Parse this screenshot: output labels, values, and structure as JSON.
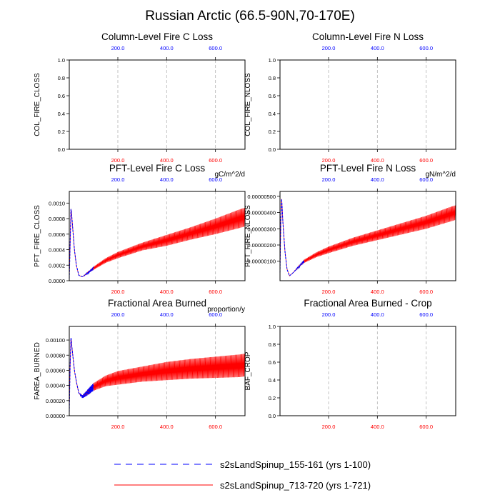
{
  "figure_title": "Russian Arctic (66.5-90N,70-170E)",
  "colors": {
    "blue": "#0000ff",
    "red": "#ff0000",
    "axis": "#000000",
    "grid": "#b4b4b4"
  },
  "legend": [
    {
      "label": "s2sLandSpinup_155-161 (yrs 1-100)",
      "color": "#0000ff",
      "style": "dashed"
    },
    {
      "label": "s2sLandSpinup_713-720 (yrs 1-721)",
      "color": "#ff0000",
      "style": "solid"
    }
  ],
  "chart_data": [
    {
      "type": "line",
      "title": "Column-Level Fire C Loss",
      "ylabel": "COL_FIRE_CLOSS",
      "units": "",
      "xlim": [
        1,
        721
      ],
      "ylim": [
        0,
        1
      ],
      "yticks": [
        "0.0",
        "0.2",
        "0.4",
        "0.6",
        "0.8",
        "1.0"
      ],
      "top_ticks": [
        "200.0",
        "400.0",
        "600.0"
      ],
      "bottom_ticks": [
        "200.0",
        "400.0",
        "600.0"
      ],
      "series": []
    },
    {
      "type": "line",
      "title": "Column-Level Fire N Loss",
      "ylabel": "COL_FIRE_NLOSS",
      "units": "",
      "xlim": [
        1,
        721
      ],
      "ylim": [
        0,
        1
      ],
      "yticks": [
        "0.0",
        "0.2",
        "0.4",
        "0.6",
        "0.8",
        "1.0"
      ],
      "top_ticks": [
        "200.0",
        "400.0",
        "600.0"
      ],
      "bottom_ticks": [
        "200.0",
        "400.0",
        "600.0"
      ],
      "series": []
    },
    {
      "type": "line",
      "title": "PFT-Level Fire C Loss",
      "ylabel": "PFT_FIRE_CLOSS",
      "units": "gC/m^2/d",
      "xlim": [
        1,
        721
      ],
      "ylim": [
        0,
        0.00115
      ],
      "yticks": [
        "0.0000",
        "0.0002",
        "0.0004",
        "0.0006",
        "0.0008",
        "0.0010"
      ],
      "top_ticks": [
        "200.0",
        "400.0",
        "600.0"
      ],
      "bottom_ticks": [
        "200.0",
        "400.0",
        "600.0"
      ],
      "series": [
        {
          "name": "s2sLandSpinup_713-720 (yrs 1-721)",
          "color": "#ff0000",
          "x": [
            1,
            4,
            8,
            12,
            17,
            22,
            30,
            40,
            55,
            80,
            100,
            150,
            200,
            300,
            400,
            500,
            600,
            700,
            721
          ],
          "y": [
            3e-05,
            0.0004,
            0.00095,
            0.0008,
            0.0006,
            0.0004,
            0.0002,
            7e-05,
            5e-05,
            0.00011,
            0.00016,
            0.00026,
            0.00033,
            0.00044,
            0.00052,
            0.00061,
            0.0007,
            0.0008,
            0.00082
          ],
          "spread": [
            0,
            0,
            0,
            0,
            0,
            0,
            0,
            0,
            0,
            1e-05,
            2e-05,
            3e-05,
            4e-05,
            5e-05,
            7e-05,
            8e-05,
            0.0001,
            0.00012,
            0.00012
          ]
        },
        {
          "name": "s2sLandSpinup_155-161 (yrs 1-100)",
          "color": "#0000ff",
          "x": [
            1,
            4,
            8,
            12,
            17,
            22,
            30,
            40,
            55,
            80,
            100
          ],
          "y": [
            3e-05,
            0.0004,
            0.00095,
            0.0008,
            0.0006,
            0.0004,
            0.0002,
            7e-05,
            5e-05,
            0.00011,
            0.00016
          ],
          "spread": [
            0,
            0,
            0,
            0,
            0,
            0,
            0,
            0,
            0,
            1e-05,
            2e-05
          ]
        }
      ]
    },
    {
      "type": "line",
      "title": "PFT-Level Fire N Loss",
      "ylabel": "PFT_FIRE_NLOSS",
      "units": "gN/m^2/d",
      "xlim": [
        1,
        721
      ],
      "ylim": [
        -2e-07,
        5.3e-06
      ],
      "yticks": [
        "0.00000100",
        "0.00000200",
        "0.00000300",
        "0.00000400",
        "0.00000500"
      ],
      "top_ticks": [
        "200.0",
        "400.0",
        "600.0"
      ],
      "bottom_ticks": [
        "200.0",
        "400.0",
        "600.0"
      ],
      "series": [
        {
          "name": "s2sLandSpinup_713-720 (yrs 1-721)",
          "color": "#ff0000",
          "x": [
            1,
            4,
            8,
            12,
            17,
            22,
            30,
            40,
            55,
            80,
            100,
            150,
            200,
            300,
            400,
            500,
            600,
            700,
            721
          ],
          "y": [
            3e-07,
            3.5e-06,
            4.9e-06,
            3.6e-06,
            2.5e-06,
            1.5e-06,
            5e-07,
            1e-07,
            3e-07,
            7e-07,
            1e-06,
            1.4e-06,
            1.7e-06,
            2.2e-06,
            2.6e-06,
            3e-06,
            3.4e-06,
            3.9e-06,
            4e-06
          ],
          "spread": [
            0,
            0,
            0,
            0,
            0,
            0,
            0,
            0,
            0,
            5e-08,
            1e-07,
            1.5e-07,
            2e-07,
            2.5e-07,
            3e-07,
            3.5e-07,
            4e-07,
            4.5e-07,
            4.5e-07
          ]
        },
        {
          "name": "s2sLandSpinup_155-161 (yrs 1-100)",
          "color": "#0000ff",
          "x": [
            1,
            4,
            8,
            12,
            17,
            22,
            30,
            40,
            55,
            80,
            100
          ],
          "y": [
            3e-07,
            3.5e-06,
            4.9e-06,
            3.6e-06,
            2.5e-06,
            1.5e-06,
            5e-07,
            1e-07,
            3e-07,
            7e-07,
            1e-06
          ],
          "spread": [
            0,
            0,
            0,
            0,
            0,
            0,
            0,
            0,
            0,
            5e-08,
            1e-07
          ]
        }
      ]
    },
    {
      "type": "line",
      "title": "Fractional Area Burned",
      "ylabel": "FAREA_BURNED",
      "units": "proportion/y",
      "xlim": [
        1,
        721
      ],
      "ylim": [
        0,
        0.00118
      ],
      "yticks": [
        "0.00000",
        "0.00020",
        "0.00040",
        "0.00060",
        "0.00080",
        "0.00100"
      ],
      "top_ticks": [
        "200.0",
        "400.0",
        "600.0"
      ],
      "bottom_ticks": [
        "200.0",
        "400.0",
        "600.0"
      ],
      "series": [
        {
          "name": "s2sLandSpinup_713-720 (yrs 1-721)",
          "color": "#ff0000",
          "x": [
            1,
            4,
            8,
            12,
            17,
            22,
            30,
            40,
            55,
            80,
            100,
            150,
            200,
            300,
            400,
            500,
            600,
            700,
            721
          ],
          "y": [
            5e-05,
            0.0006,
            0.00105,
            0.0009,
            0.00075,
            0.0006,
            0.00045,
            0.0003,
            0.00025,
            0.00032,
            0.00038,
            0.00046,
            0.0005,
            0.00055,
            0.00059,
            0.00062,
            0.00064,
            0.00066,
            0.00067
          ],
          "spread": [
            0,
            0,
            0,
            0,
            0,
            0,
            0,
            0,
            2e-05,
            4e-05,
            5e-05,
            7e-05,
            9e-05,
            0.0001,
            0.00012,
            0.00013,
            0.00014,
            0.00015,
            0.00015
          ]
        },
        {
          "name": "s2sLandSpinup_155-161 (yrs 1-100)",
          "color": "#0000ff",
          "x": [
            1,
            4,
            8,
            12,
            17,
            22,
            30,
            40,
            55,
            80,
            100
          ],
          "y": [
            5e-05,
            0.0006,
            0.00105,
            0.0009,
            0.00075,
            0.0006,
            0.00045,
            0.0003,
            0.00025,
            0.00032,
            0.00038
          ],
          "spread": [
            0,
            0,
            0,
            0,
            0,
            0,
            0,
            0,
            2e-05,
            4e-05,
            5e-05
          ]
        }
      ]
    },
    {
      "type": "line",
      "title": "Fractional Area Burned - Crop",
      "ylabel": "BAF_CROP",
      "units": "",
      "xlim": [
        1,
        721
      ],
      "ylim": [
        0,
        1
      ],
      "yticks": [
        "0.0",
        "0.2",
        "0.4",
        "0.6",
        "0.8",
        "1.0"
      ],
      "top_ticks": [
        "200.0",
        "400.0",
        "600.0"
      ],
      "bottom_ticks": [
        "200.0",
        "400.0",
        "600.0"
      ],
      "series": []
    }
  ]
}
